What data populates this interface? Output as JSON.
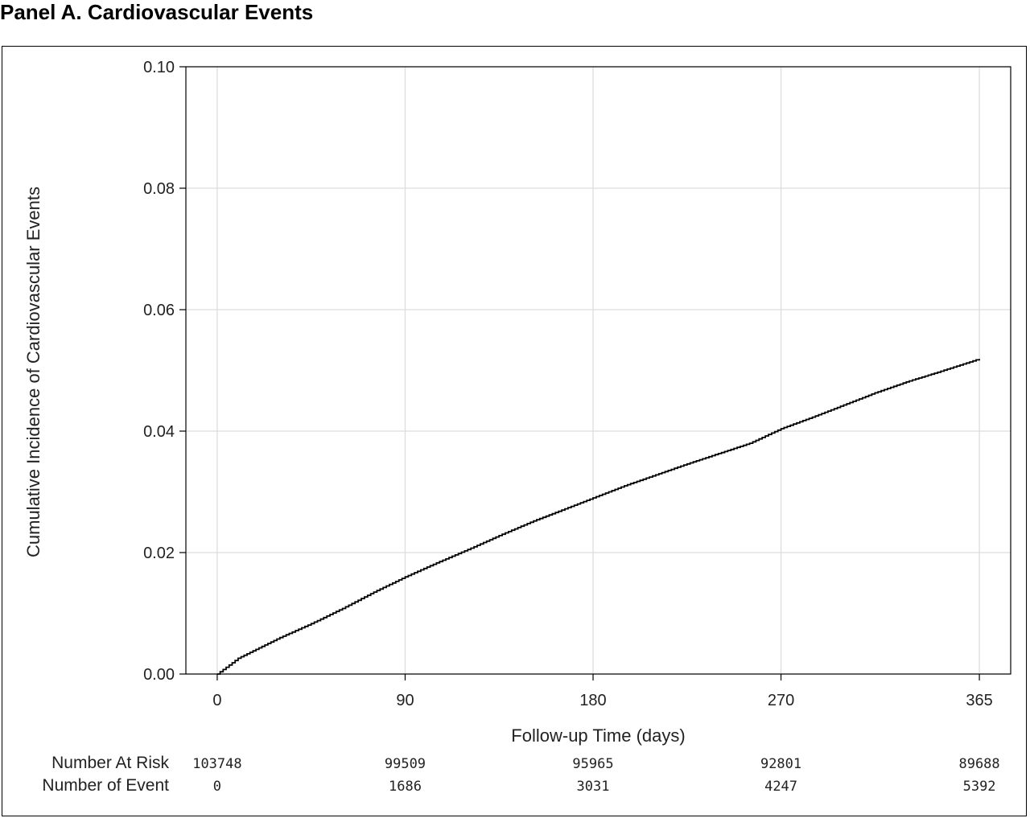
{
  "panel_title": "Panel A. Cardiovascular Events",
  "chart_data": {
    "type": "line",
    "title": "Panel A. Cardiovascular Events",
    "xlabel": "Follow-up Time (days)",
    "ylabel": "Cumulative Incidence of Cardiovascular Events",
    "xlim": [
      -15,
      380
    ],
    "ylim": [
      0,
      0.1
    ],
    "x_ticks": [
      0,
      90,
      180,
      270,
      365
    ],
    "x_tick_labels": [
      "0",
      "90",
      "180",
      "270",
      "365"
    ],
    "y_ticks": [
      0,
      0.02,
      0.04,
      0.06,
      0.08,
      0.1
    ],
    "y_tick_labels": [
      "0.00",
      "0.02",
      "0.04",
      "0.06",
      "0.08",
      "0.10"
    ],
    "grid": true,
    "series": [
      {
        "x": [
          0,
          10,
          20,
          30,
          45,
          60,
          75,
          90,
          105,
          120,
          135,
          150,
          165,
          180,
          195,
          210,
          225,
          240,
          255,
          270,
          285,
          300,
          315,
          330,
          345,
          365
        ],
        "y": [
          0,
          0.0026,
          0.0043,
          0.006,
          0.0083,
          0.0108,
          0.0135,
          0.016,
          0.0183,
          0.0205,
          0.0228,
          0.025,
          0.027,
          0.029,
          0.031,
          0.0328,
          0.0346,
          0.0363,
          0.038,
          0.0404,
          0.0423,
          0.0443,
          0.0463,
          0.0481,
          0.0497,
          0.0519
        ]
      }
    ],
    "risk_table": {
      "rows": [
        {
          "label": "Number At Risk",
          "values": [
            "103748",
            "99509",
            "95965",
            "92801",
            "89688"
          ]
        },
        {
          "label": "Number of Event",
          "values": [
            "0",
            "1686",
            "3031",
            "4247",
            "5392"
          ]
        }
      ]
    }
  }
}
